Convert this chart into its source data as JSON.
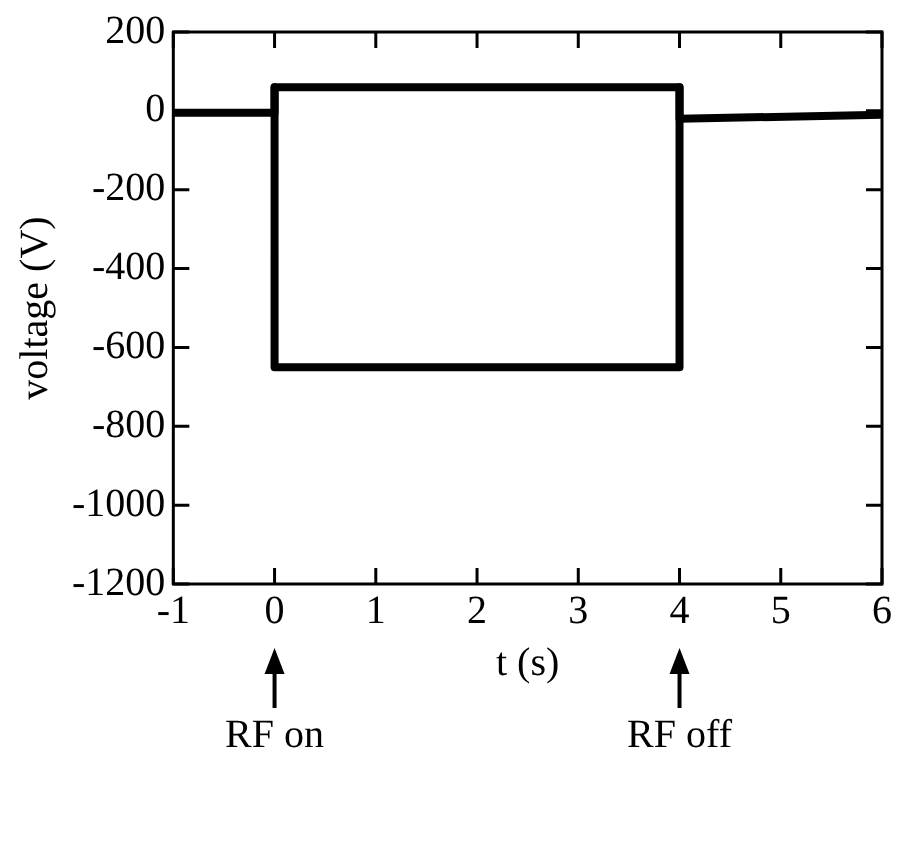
{
  "chart_data": {
    "type": "line",
    "xlabel": "t (s)",
    "ylabel": "voltage (V)",
    "series": [
      {
        "color": "#000000",
        "x": [
          -1,
          0,
          0,
          4,
          4,
          6
        ],
        "values": [
          -5,
          -5,
          60,
          60,
          -20,
          -10
        ]
      },
      {
        "color": "#000000",
        "x": [
          0,
          0,
          4,
          4
        ],
        "values": [
          60,
          -650,
          -650,
          60
        ]
      }
    ],
    "xlim": [
      -1,
      6
    ],
    "xticks": [
      -1,
      0,
      1,
      2,
      3,
      4,
      5,
      6
    ],
    "ylim": [
      -1200,
      200
    ],
    "yticks": [
      -1200,
      -1000,
      -800,
      -600,
      -400,
      -200,
      0,
      200
    ],
    "grid": false,
    "legend": false,
    "marker": "none",
    "line_style": "solid",
    "annotations": [
      "RF on",
      "RF off"
    ]
  }
}
